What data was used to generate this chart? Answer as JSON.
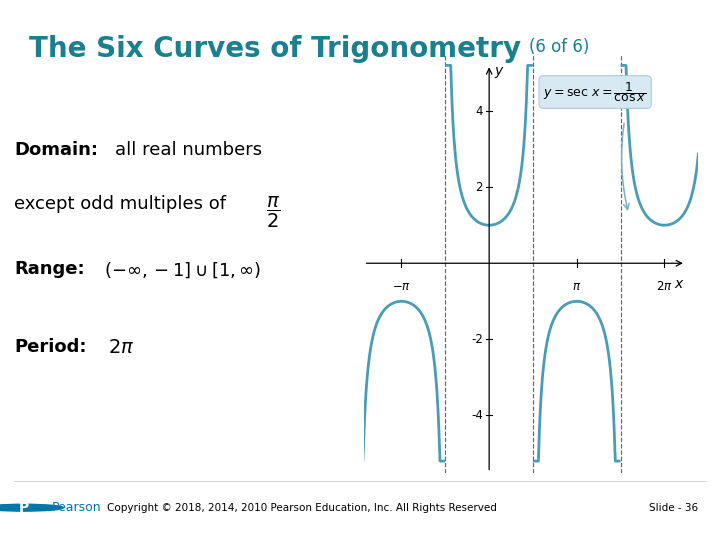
{
  "title_main": "The Six Curves of Trigonometry",
  "title_sub": "(6 of 6)",
  "title_color": "#1a7f8e",
  "bg_color": "#ffffff",
  "curve_color": "#4a9cb5",
  "asymptote_color": "#666666",
  "annotation_box_color": "#d6eaf3",
  "xlim": [
    -4.5,
    7.5
  ],
  "ylim": [
    -5.5,
    5.5
  ],
  "ytick_vals": [
    -4,
    -2,
    2,
    4
  ],
  "xtick_values": [
    -3.14159265,
    3.14159265,
    6.2831853
  ],
  "copyright": "Copyright © 2018, 2014, 2010 Pearson Education, Inc. All Rights Reserved",
  "slide": "Slide - 36"
}
